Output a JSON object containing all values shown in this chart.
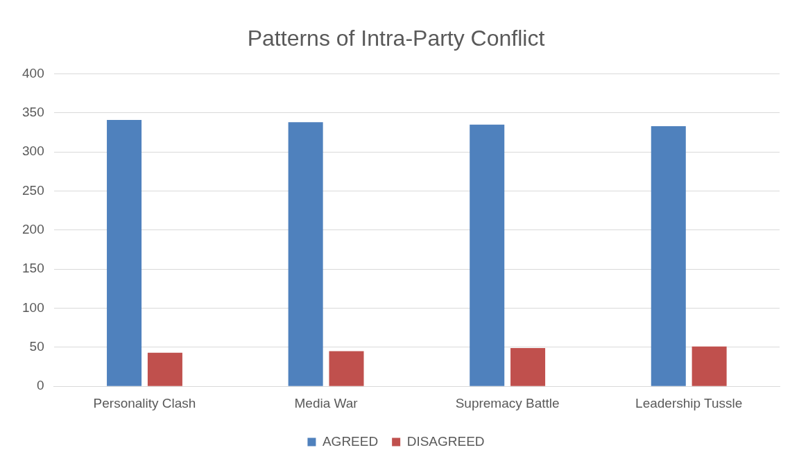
{
  "chart_data": {
    "type": "bar",
    "title": "Patterns of Intra-Party Conflict",
    "categories": [
      "Personality Clash",
      "Media War",
      "Supremacy Battle",
      "Leadership Tussle"
    ],
    "series": [
      {
        "name": "AGREED",
        "color": "#4f81bd",
        "values": [
          341,
          338,
          335,
          333
        ]
      },
      {
        "name": "DISAGREED",
        "color": "#c0504d",
        "values": [
          43,
          45,
          49,
          51
        ]
      }
    ],
    "ylim": [
      0,
      400
    ],
    "yticks": [
      0,
      50,
      100,
      150,
      200,
      250,
      300,
      350,
      400
    ],
    "grid": "y",
    "legend": "bottom"
  }
}
